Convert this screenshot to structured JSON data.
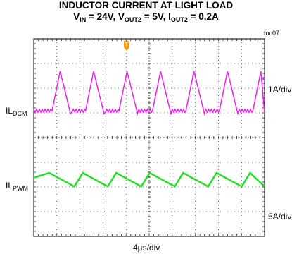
{
  "title": {
    "line1": "INDUCTOR CURRENT AT LIGHT LOAD",
    "line2_parts": [
      "V",
      "IN",
      " = 24V, V",
      "OUT2",
      " = 5V, I",
      "OUT2",
      " = 0.2A"
    ]
  },
  "figure_id": "toc07",
  "trigger_marker": "T",
  "channels": [
    {
      "label_main": "IL",
      "label_sub": "DCM",
      "scale": "1A/div",
      "color": "#ee22ee",
      "mode": "discontinuous"
    },
    {
      "label_main": "IL",
      "label_sub": "PWM",
      "scale": "5A/div",
      "color": "#22dd22",
      "mode": "continuous"
    }
  ],
  "chart_data": {
    "type": "line",
    "x_unit_label": "4µs/div",
    "divisions": {
      "x": 10,
      "y": 8
    },
    "grid": true,
    "series": [
      {
        "name": "IL(DCM)",
        "scale_per_div": "1A/div",
        "switching_period_div": 1.45,
        "peak_div": 1.6,
        "rise_div": 0.35,
        "fall_div": 0.45
      },
      {
        "name": "IL(PWM)",
        "scale_per_div": "5A/div",
        "switching_period_div": 1.45,
        "peak_to_peak_div": 0.55
      }
    ]
  }
}
